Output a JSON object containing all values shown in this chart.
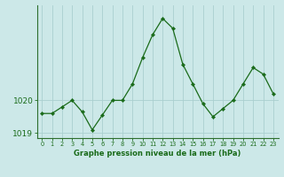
{
  "x": [
    0,
    1,
    2,
    3,
    4,
    5,
    6,
    7,
    8,
    9,
    10,
    11,
    12,
    13,
    14,
    15,
    16,
    17,
    18,
    19,
    20,
    21,
    22,
    23
  ],
  "y": [
    1019.6,
    1019.6,
    1019.8,
    1020.0,
    1019.65,
    1019.1,
    1019.55,
    1020.0,
    1020.0,
    1020.5,
    1021.3,
    1022.0,
    1022.5,
    1022.2,
    1021.1,
    1020.5,
    1019.9,
    1019.5,
    1019.75,
    1020.0,
    1020.5,
    1021.0,
    1020.8,
    1020.2
  ],
  "line_color": "#1a6b1a",
  "marker_color": "#1a6b1a",
  "bg_color": "#cce8e8",
  "plot_bg_color": "#cce8e8",
  "grid_color": "#aacfcf",
  "axis_color": "#1a6b1a",
  "spine_color": "#2d6e2d",
  "title": "Graphe pression niveau de la mer (hPa)",
  "ylim": [
    1018.85,
    1022.9
  ],
  "xlim": [
    -0.5,
    23.5
  ],
  "yticks": [
    1019,
    1020
  ],
  "xticks": [
    0,
    1,
    2,
    3,
    4,
    5,
    6,
    7,
    8,
    9,
    10,
    11,
    12,
    13,
    14,
    15,
    16,
    17,
    18,
    19,
    20,
    21,
    22,
    23
  ]
}
